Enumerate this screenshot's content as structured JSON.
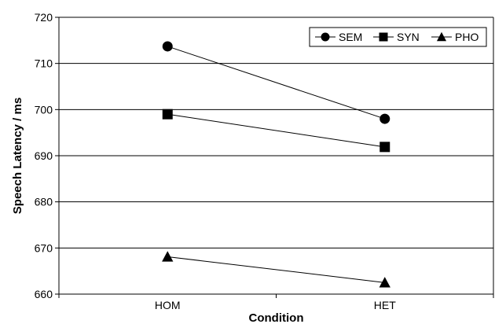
{
  "chart_data": {
    "type": "line",
    "title": "",
    "xlabel": "Condition",
    "ylabel": "Speech Latency / ms",
    "categories": [
      "HOM",
      "HET"
    ],
    "ylim": [
      660,
      720
    ],
    "yticks": [
      660,
      670,
      680,
      690,
      700,
      710,
      720
    ],
    "grid": true,
    "legend_position": "top-right",
    "series": [
      {
        "name": "SEM",
        "marker": "circle",
        "values": [
          713.7,
          698
        ]
      },
      {
        "name": "SYN",
        "marker": "square",
        "values": [
          699,
          691.9
        ]
      },
      {
        "name": "PHO",
        "marker": "triangle",
        "values": [
          668.1,
          662.5
        ]
      }
    ]
  }
}
